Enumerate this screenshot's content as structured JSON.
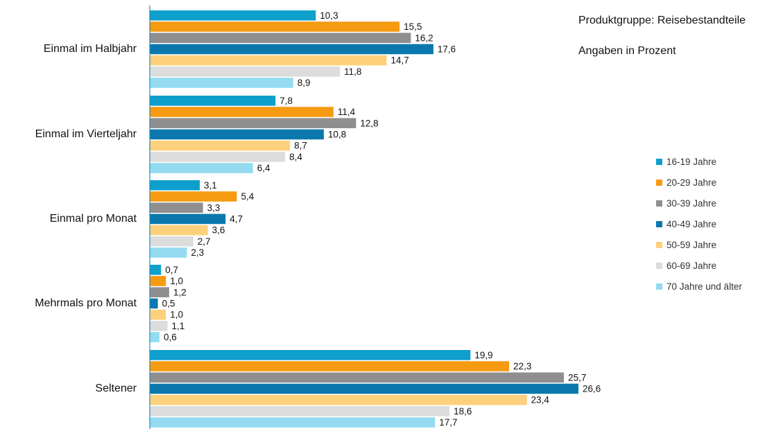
{
  "info": {
    "product_group": "Produktgruppe: Reisebestandteile",
    "unit_note": "Angaben in Prozent"
  },
  "chart_data": {
    "type": "bar",
    "orientation": "horizontal",
    "categories": [
      "Einmal im Halbjahr",
      "Einmal im Vierteljahr",
      "Einmal pro Monat",
      "Mehrmals pro Monat",
      "Seltener"
    ],
    "series": [
      {
        "name": "16-19 Jahre",
        "color": "#0f9fcc",
        "values": [
          10.3,
          7.8,
          3.1,
          0.7,
          19.9
        ]
      },
      {
        "name": "20-29 Jahre",
        "color": "#f59a11",
        "values": [
          15.5,
          11.4,
          5.4,
          1.0,
          22.3
        ]
      },
      {
        "name": "30-39 Jahre",
        "color": "#8f8f8f",
        "values": [
          16.2,
          12.8,
          3.3,
          1.2,
          25.7
        ]
      },
      {
        "name": "40-49 Jahre",
        "color": "#0a78ac",
        "values": [
          17.6,
          10.8,
          4.7,
          0.5,
          26.6
        ]
      },
      {
        "name": "50-59 Jahre",
        "color": "#fdd07b",
        "values": [
          14.7,
          8.7,
          3.6,
          1.0,
          23.4
        ]
      },
      {
        "name": "60-69 Jahre",
        "color": "#dcdcdc",
        "values": [
          11.8,
          8.4,
          2.7,
          1.1,
          18.6
        ]
      },
      {
        "name": "70 Jahre und älter",
        "color": "#94dbf0",
        "values": [
          8.9,
          6.4,
          2.3,
          0.6,
          17.7
        ]
      }
    ],
    "value_labels": [
      [
        "10,3",
        "7,8",
        "3,1",
        "0,7",
        "19,9"
      ],
      [
        "15,5",
        "11,4",
        "5,4",
        "1,0",
        "22,3"
      ],
      [
        "16,2",
        "12,8",
        "3,3",
        "1,2",
        "25,7"
      ],
      [
        "17,6",
        "10,8",
        "4,7",
        "0,5",
        "26,6"
      ],
      [
        "14,7",
        "8,7",
        "3,6",
        "1,0",
        "23,4"
      ],
      [
        "11,8",
        "8,4",
        "2,7",
        "1,1",
        "18,6"
      ],
      [
        "8,9",
        "6,4",
        "2,3",
        "0,6",
        "17,7"
      ]
    ],
    "xlim": [
      0,
      26.6
    ],
    "axis_line_color": "#1a8fc0",
    "legend_position": "right",
    "grid": false
  }
}
